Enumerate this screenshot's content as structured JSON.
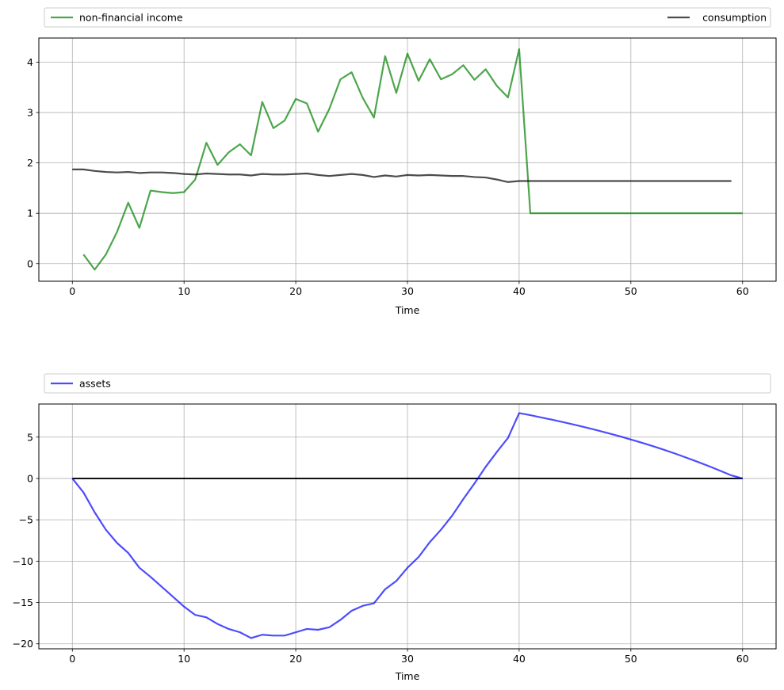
{
  "chart_data": [
    {
      "type": "line",
      "xlabel": "Time",
      "ylabel": "",
      "xlim": [
        -3,
        63
      ],
      "ylim": [
        -0.35,
        4.48
      ],
      "xticks": [
        0,
        10,
        20,
        30,
        40,
        50,
        60
      ],
      "yticks": [
        0,
        1,
        2,
        3,
        4
      ],
      "grid": true,
      "legend": {
        "placement": "top",
        "mode": "expand"
      },
      "series": [
        {
          "name": "non-financial income",
          "color": "#008000",
          "x": [
            1,
            2,
            3,
            4,
            5,
            6,
            7,
            8,
            9,
            10,
            11,
            12,
            13,
            14,
            15,
            16,
            17,
            18,
            19,
            20,
            21,
            22,
            23,
            24,
            25,
            26,
            27,
            28,
            29,
            30,
            31,
            32,
            33,
            34,
            35,
            36,
            37,
            38,
            39,
            40,
            41,
            42,
            43,
            44,
            45,
            46,
            47,
            48,
            49,
            50,
            51,
            52,
            53,
            54,
            55,
            56,
            57,
            58,
            59,
            60
          ],
          "values": [
            0.18,
            -0.12,
            0.18,
            0.63,
            1.21,
            0.71,
            1.45,
            1.42,
            1.4,
            1.42,
            1.67,
            2.4,
            1.96,
            2.21,
            2.37,
            2.15,
            3.21,
            2.69,
            2.84,
            3.27,
            3.18,
            2.62,
            3.07,
            3.66,
            3.8,
            3.29,
            2.9,
            4.12,
            3.39,
            4.17,
            3.63,
            4.06,
            3.66,
            3.76,
            3.94,
            3.65,
            3.86,
            3.53,
            3.3,
            4.26,
            1.0,
            1.0,
            1.0,
            1.0,
            1.0,
            1.0,
            1.0,
            1.0,
            1.0,
            1.0,
            1.0,
            1.0,
            1.0,
            1.0,
            1.0,
            1.0,
            1.0,
            1.0,
            1.0,
            1.0
          ]
        },
        {
          "name": "consumption",
          "color": "#000000",
          "x": [
            0,
            1,
            2,
            3,
            4,
            5,
            6,
            7,
            8,
            9,
            10,
            11,
            12,
            13,
            14,
            15,
            16,
            17,
            18,
            19,
            20,
            21,
            22,
            23,
            24,
            25,
            26,
            27,
            28,
            29,
            30,
            31,
            32,
            33,
            34,
            35,
            36,
            37,
            38,
            39,
            40,
            41,
            42,
            43,
            44,
            45,
            46,
            47,
            48,
            49,
            50,
            51,
            52,
            53,
            54,
            55,
            56,
            57,
            58,
            59
          ],
          "values": [
            1.87,
            1.87,
            1.84,
            1.82,
            1.81,
            1.82,
            1.8,
            1.81,
            1.81,
            1.8,
            1.78,
            1.77,
            1.79,
            1.78,
            1.77,
            1.77,
            1.75,
            1.78,
            1.77,
            1.77,
            1.78,
            1.79,
            1.76,
            1.74,
            1.76,
            1.78,
            1.76,
            1.72,
            1.75,
            1.73,
            1.76,
            1.75,
            1.76,
            1.75,
            1.74,
            1.74,
            1.72,
            1.71,
            1.67,
            1.62,
            1.64,
            1.64,
            1.64,
            1.64,
            1.64,
            1.64,
            1.64,
            1.64,
            1.64,
            1.64,
            1.64,
            1.64,
            1.64,
            1.64,
            1.64,
            1.64,
            1.64,
            1.64,
            1.64,
            1.64
          ]
        }
      ]
    },
    {
      "type": "line",
      "xlabel": "Time",
      "ylabel": "",
      "xlim": [
        -3,
        63
      ],
      "ylim": [
        -20.6,
        9.0
      ],
      "xticks": [
        0,
        10,
        20,
        30,
        40,
        50,
        60
      ],
      "yticks": [
        5,
        0,
        -5,
        -10,
        -15,
        -20
      ],
      "grid": true,
      "legend": {
        "placement": "top",
        "mode": "expand"
      },
      "hline": {
        "y": 0,
        "color": "#000000"
      },
      "series": [
        {
          "name": "assets",
          "color": "#0000ff",
          "x": [
            0,
            1,
            2,
            3,
            4,
            5,
            6,
            7,
            8,
            9,
            10,
            11,
            12,
            13,
            14,
            15,
            16,
            17,
            18,
            19,
            20,
            21,
            22,
            23,
            24,
            25,
            26,
            27,
            28,
            29,
            30,
            31,
            32,
            33,
            34,
            35,
            36,
            37,
            38,
            39,
            40,
            41,
            42,
            43,
            44,
            45,
            46,
            47,
            48,
            49,
            50,
            51,
            52,
            53,
            54,
            55,
            56,
            57,
            58,
            59,
            60
          ],
          "values": [
            0,
            -1.7,
            -4.1,
            -6.2,
            -7.8,
            -9.0,
            -10.8,
            -11.9,
            -13.1,
            -14.3,
            -15.5,
            -16.5,
            -16.8,
            -17.6,
            -18.2,
            -18.6,
            -19.3,
            -18.9,
            -19.0,
            -19.0,
            -18.6,
            -18.2,
            -18.3,
            -18.0,
            -17.1,
            -16.0,
            -15.4,
            -15.1,
            -13.4,
            -12.4,
            -10.8,
            -9.5,
            -7.7,
            -6.2,
            -4.5,
            -2.5,
            -0.6,
            1.4,
            3.2,
            4.9,
            7.9,
            7.65,
            7.37,
            7.09,
            6.79,
            6.48,
            6.16,
            5.82,
            5.46,
            5.1,
            4.71,
            4.31,
            3.89,
            3.45,
            2.99,
            2.5,
            2.0,
            1.48,
            0.93,
            0.37,
            0.0
          ]
        }
      ]
    }
  ]
}
